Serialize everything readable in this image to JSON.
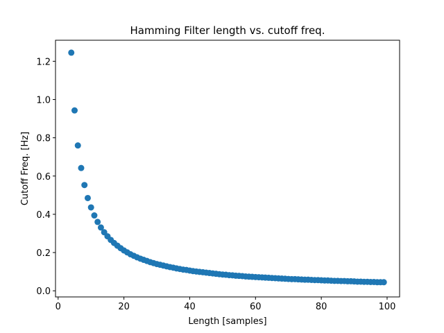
{
  "chart_data": {
    "type": "scatter",
    "title": "Hamming Filter length vs. cutoff freq.",
    "xlabel": "Length [samples]",
    "ylabel": "Cutoff Freq. [Hz]",
    "xlim": [
      -0.8,
      103.8
    ],
    "ylim": [
      -0.032,
      1.31
    ],
    "xticks": [
      0,
      20,
      40,
      60,
      80,
      100
    ],
    "yticks": [
      0.0,
      0.2,
      0.4,
      0.6,
      0.8,
      1.0,
      1.2
    ],
    "grid": false,
    "marker_color": "#1f77b4",
    "series": [
      {
        "x": [
          4,
          5,
          6,
          7,
          8,
          9,
          10,
          11,
          12,
          13,
          14,
          15,
          16,
          17,
          18,
          19,
          20,
          21,
          22,
          23,
          24,
          25,
          26,
          27,
          28,
          29,
          30,
          31,
          32,
          33,
          34,
          35,
          36,
          37,
          38,
          39,
          40,
          41,
          42,
          43,
          44,
          45,
          46,
          47,
          48,
          49,
          50,
          51,
          52,
          53,
          54,
          55,
          56,
          57,
          58,
          59,
          60,
          61,
          62,
          63,
          64,
          65,
          66,
          67,
          68,
          69,
          70,
          71,
          72,
          73,
          74,
          75,
          76,
          77,
          78,
          79,
          80,
          81,
          82,
          83,
          84,
          85,
          86,
          87,
          88,
          89,
          90,
          91,
          92,
          93,
          94,
          95,
          96,
          97,
          98,
          99
        ],
        "y": [
          1.245,
          0.943,
          0.76,
          0.642,
          0.553,
          0.485,
          0.436,
          0.394,
          0.36,
          0.331,
          0.306,
          0.285,
          0.266,
          0.25,
          0.236,
          0.223,
          0.211,
          0.201,
          0.191,
          0.183,
          0.175,
          0.168,
          0.162,
          0.156,
          0.15,
          0.145,
          0.14,
          0.136,
          0.132,
          0.128,
          0.124,
          0.121,
          0.117,
          0.114,
          0.111,
          0.109,
          0.106,
          0.103,
          0.101,
          0.099,
          0.097,
          0.095,
          0.093,
          0.091,
          0.089,
          0.087,
          0.085,
          0.084,
          0.082,
          0.081,
          0.079,
          0.078,
          0.077,
          0.075,
          0.074,
          0.073,
          0.072,
          0.071,
          0.07,
          0.069,
          0.068,
          0.067,
          0.066,
          0.065,
          0.064,
          0.063,
          0.062,
          0.061,
          0.061,
          0.06,
          0.059,
          0.058,
          0.058,
          0.057,
          0.056,
          0.056,
          0.055,
          0.054,
          0.054,
          0.053,
          0.052,
          0.052,
          0.051,
          0.051,
          0.05,
          0.05,
          0.049,
          0.048,
          0.048,
          0.047,
          0.047,
          0.046,
          0.046,
          0.045,
          0.045,
          0.045
        ]
      }
    ]
  }
}
